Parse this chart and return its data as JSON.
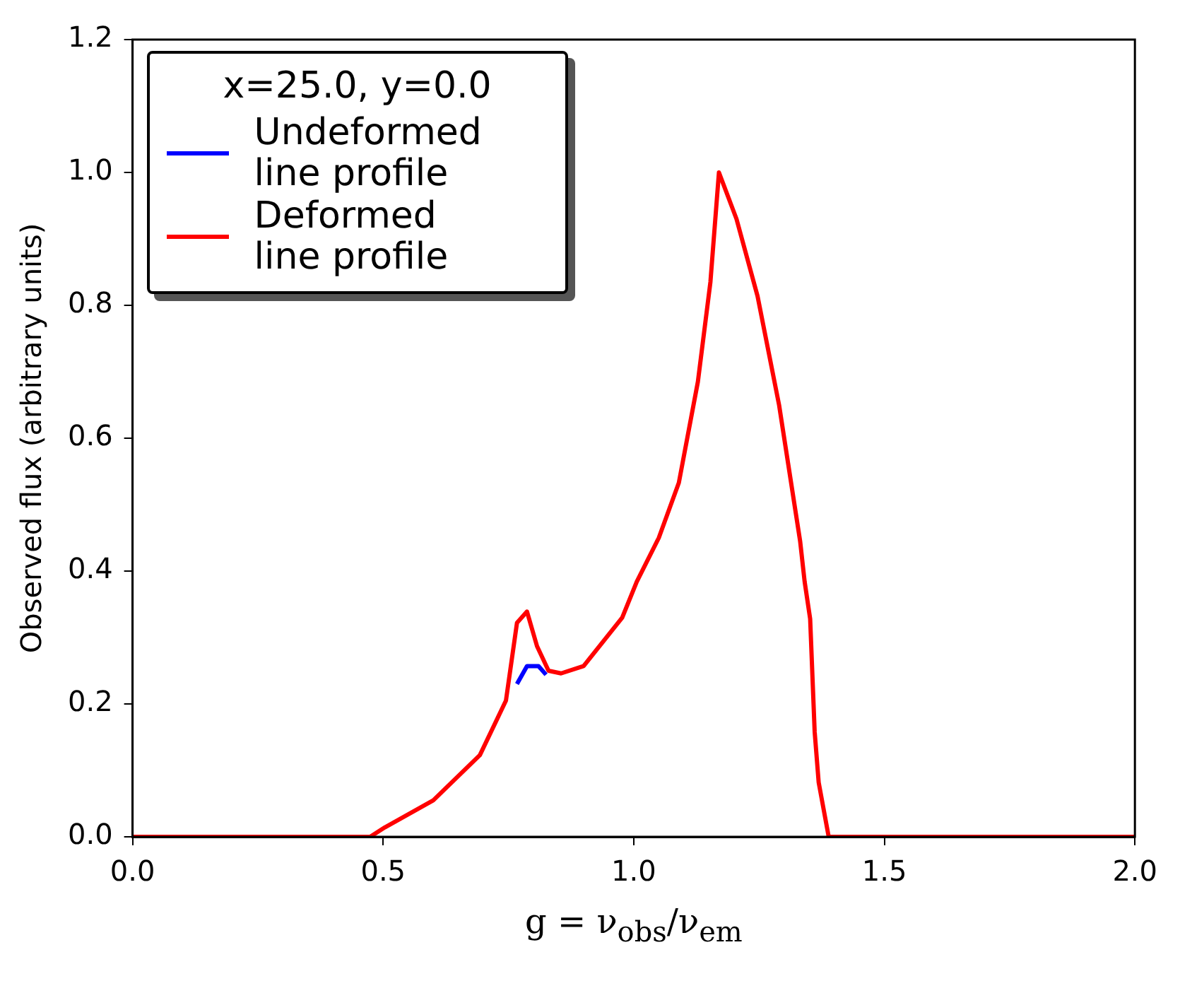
{
  "chart_data": {
    "type": "line",
    "xlabel": "g = ν$_{obs}$/ν$_{em}$",
    "ylabel": "Observed flux (arbitrary units)",
    "legend_title": "x=25.0, y=0.0",
    "legend": "top left",
    "grid": false,
    "marker": "none",
    "line_style": "solid",
    "xlim": [
      0,
      2
    ],
    "ylim": [
      0,
      1.2
    ],
    "xticks": [
      {
        "value": 0,
        "label": "0.0"
      },
      {
        "value": 0.5,
        "label": "0.5"
      },
      {
        "value": 1,
        "label": "1.0"
      },
      {
        "value": 1.5,
        "label": "1.5"
      },
      {
        "value": 2,
        "label": "2.0"
      }
    ],
    "yticks": [
      {
        "value": 0,
        "label": "0.0"
      },
      {
        "value": 0.2,
        "label": "0.2"
      },
      {
        "value": 0.4,
        "label": "0.4"
      },
      {
        "value": 0.6,
        "label": "0.6"
      },
      {
        "value": 0.8,
        "label": "0.8"
      },
      {
        "value": 1,
        "label": "1.0"
      },
      {
        "value": 1.2,
        "label": "1.2"
      }
    ],
    "series": [
      {
        "name": "Undeformed line profile",
        "color": "#0000ff",
        "x": [
          0.767,
          0.787,
          0.81,
          0.825
        ],
        "values": [
          0.23,
          0.257,
          0.257,
          0.244
        ]
      },
      {
        "name": "Deformed line profile",
        "color": "#ff0000",
        "x": [
          0,
          0.474,
          0.503,
          0.6,
          0.693,
          0.745,
          0.767,
          0.787,
          0.807,
          0.83,
          0.855,
          0.9,
          0.977,
          1.006,
          1.05,
          1.09,
          1.128,
          1.153,
          1.17,
          1.205,
          1.247,
          1.29,
          1.332,
          1.341,
          1.352,
          1.361,
          1.369,
          1.389,
          2
        ],
        "values": [
          0,
          0,
          0.014,
          0.055,
          0.123,
          0.205,
          0.322,
          0.339,
          0.287,
          0.25,
          0.246,
          0.257,
          0.33,
          0.384,
          0.45,
          0.533,
          0.685,
          0.835,
          1.0,
          0.93,
          0.814,
          0.65,
          0.445,
          0.384,
          0.328,
          0.158,
          0.082,
          0,
          0
        ]
      }
    ]
  }
}
